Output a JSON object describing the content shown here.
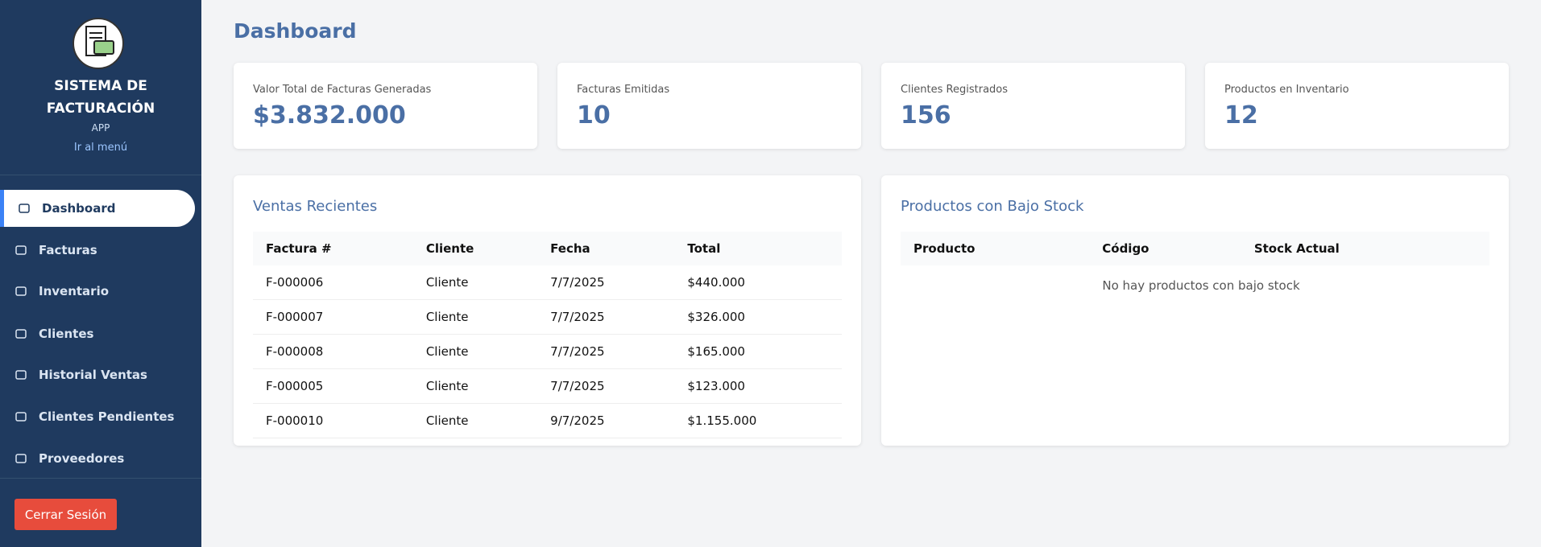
{
  "sidebar": {
    "title_line1": "SISTEMA DE",
    "title_line2": "FACTURACIÓN",
    "subtitle": "APP",
    "menu_link": "Ir al menú",
    "nav": [
      "Dashboard",
      "Facturas",
      "Inventario",
      "Clientes",
      "Historial Ventas",
      "Clientes Pendientes",
      "Proveedores"
    ],
    "logout": "Cerrar Sesión"
  },
  "header": {
    "title": "Dashboard"
  },
  "stats": [
    {
      "label": "Valor Total de Facturas Generadas",
      "value": "$3.832.000"
    },
    {
      "label": "Facturas Emitidas",
      "value": "10"
    },
    {
      "label": "Clientes Registrados",
      "value": "156"
    },
    {
      "label": "Productos en Inventario",
      "value": "12"
    }
  ],
  "recent_sales": {
    "title": "Ventas Recientes",
    "columns": [
      "Factura #",
      "Cliente",
      "Fecha",
      "Total"
    ],
    "rows": [
      [
        "F-000006",
        "Cliente",
        "7/7/2025",
        "$440.000"
      ],
      [
        "F-000007",
        "Cliente",
        "7/7/2025",
        "$326.000"
      ],
      [
        "F-000008",
        "Cliente",
        "7/7/2025",
        "$165.000"
      ],
      [
        "F-000005",
        "Cliente",
        "7/7/2025",
        "$123.000"
      ],
      [
        "F-000010",
        "Cliente",
        "9/7/2025",
        "$1.155.000"
      ]
    ]
  },
  "low_stock": {
    "title": "Productos con Bajo Stock",
    "columns": [
      "Producto",
      "Código",
      "Stock Actual"
    ],
    "empty": "No hay productos con bajo stock"
  }
}
